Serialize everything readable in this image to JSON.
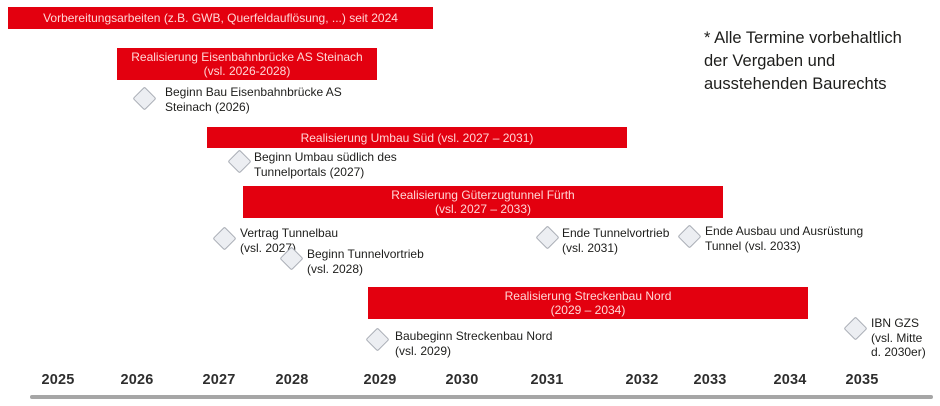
{
  "note": "* Alle Termine vorbehaltlich\nder Vergaben und\nausstehenden Baurechts",
  "colors": {
    "bar": "#e3000f",
    "bar_text": "#ffd6d6",
    "text": "#1d1d1b",
    "axis": "#a6a6a6",
    "diamond_fill": "#eceef2",
    "diamond_border": "#a9adb5"
  },
  "bars": [
    {
      "label": "Vorbereitungsarbeiten (z.B. GWB, Querfeldauflösung, ...) seit 2024"
    },
    {
      "label": "Realisierung Eisenbahnbrücke AS Steinach\n(vsl. 2026-2028)"
    },
    {
      "label": "Realisierung Umbau Süd (vsl. 2027 – 2031)"
    },
    {
      "label": "Realisierung Güterzugtunnel Fürth\n(vsl. 2027 – 2033)"
    },
    {
      "label": "Realisierung Streckenbau Nord\n(2029 – 2034)"
    }
  ],
  "milestones": [
    {
      "label": "Beginn Bau Eisenbahnbrücke AS\nSteinach (2026)"
    },
    {
      "label": "Beginn Umbau südlich des\nTunnelportals (2027)"
    },
    {
      "label": "Vertrag Tunnelbau\n(vsl. 2027)"
    },
    {
      "label": "Beginn Tunnelvortrieb\n(vsl. 2028)"
    },
    {
      "label": "Ende Tunnelvortrieb\n(vsl. 2031)"
    },
    {
      "label": "Ende Ausbau und Ausrüstung\nTunnel (vsl. 2033)"
    },
    {
      "label": "Baubeginn Streckenbau Nord\n(vsl. 2029)"
    },
    {
      "label": "IBN GZS\n(vsl. Mitte\nd. 2030er)"
    }
  ],
  "axis": {
    "years": [
      "2025",
      "2026",
      "2027",
      "2028",
      "2029",
      "2030",
      "2031",
      "2032",
      "2033",
      "2034",
      "2035"
    ]
  },
  "chart_data": {
    "type": "bar",
    "subtype": "gantt-timeline",
    "title": "",
    "xlabel": "",
    "ylabel": "",
    "x_range": [
      2024,
      2035
    ],
    "x_ticks": [
      2025,
      2026,
      2027,
      2028,
      2029,
      2030,
      2031,
      2032,
      2033,
      2034,
      2035
    ],
    "grid": false,
    "tasks": [
      {
        "name": "Vorbereitungsarbeiten (z.B. GWB, Querfeldauflösung, ...)",
        "start": 2024,
        "end": 2029.6,
        "note": "seit 2024"
      },
      {
        "name": "Realisierung Eisenbahnbrücke AS Steinach",
        "start": 2026,
        "end": 2028,
        "note": "vsl. 2026-2028"
      },
      {
        "name": "Realisierung Umbau Süd",
        "start": 2027,
        "end": 2031,
        "note": "vsl. 2027 – 2031"
      },
      {
        "name": "Realisierung Güterzugtunnel Fürth",
        "start": 2027,
        "end": 2033,
        "note": "vsl. 2027 – 2033"
      },
      {
        "name": "Realisierung Streckenbau Nord",
        "start": 2029,
        "end": 2034,
        "note": "2029 – 2034"
      }
    ],
    "milestones": [
      {
        "name": "Beginn Bau Eisenbahnbrücke AS Steinach",
        "year": 2026
      },
      {
        "name": "Beginn Umbau südlich des Tunnelportals",
        "year": 2027
      },
      {
        "name": "Vertrag Tunnelbau",
        "year": 2027,
        "note": "vsl."
      },
      {
        "name": "Beginn Tunnelvortrieb",
        "year": 2028,
        "note": "vsl."
      },
      {
        "name": "Ende Tunnelvortrieb",
        "year": 2031,
        "note": "vsl."
      },
      {
        "name": "Ende Ausbau und Ausrüstung Tunnel",
        "year": 2033,
        "note": "vsl."
      },
      {
        "name": "Baubeginn Streckenbau Nord",
        "year": 2029,
        "note": "vsl."
      },
      {
        "name": "IBN GZS",
        "year": "Mitte der 2030er",
        "note": "vsl."
      }
    ],
    "annotation": "* Alle Termine vorbehaltlich der Vergaben und ausstehenden Baurechts"
  }
}
